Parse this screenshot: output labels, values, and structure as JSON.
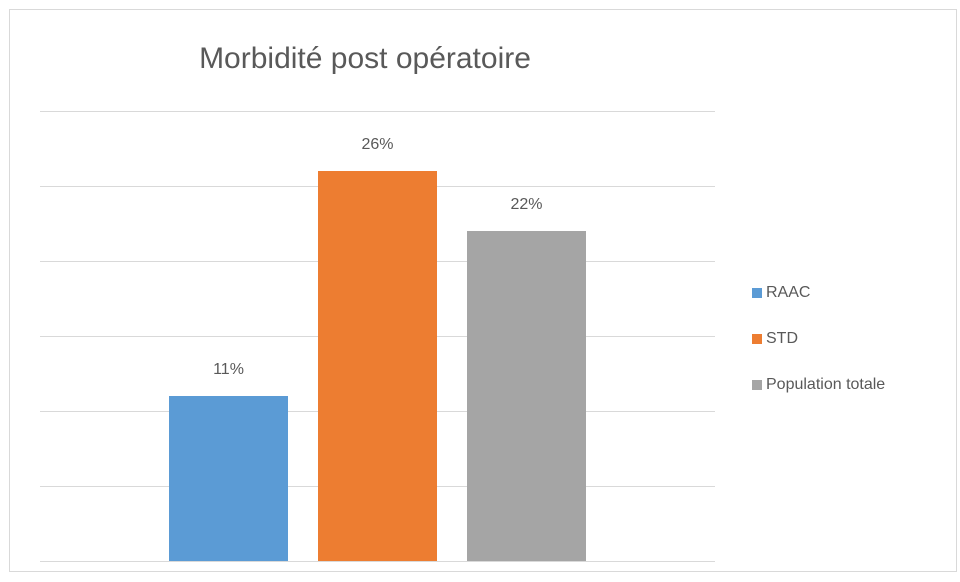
{
  "chart_data": {
    "type": "bar",
    "title": "Morbidité post opératoire",
    "categories": [
      null
    ],
    "series": [
      {
        "name": "RAAC",
        "color": "#5b9bd5",
        "values": [
          11
        ],
        "value_labels": [
          "11%"
        ]
      },
      {
        "name": "STD",
        "color": "#ed7d31",
        "values": [
          26
        ],
        "value_labels": [
          "26%"
        ]
      },
      {
        "name": "Population totale",
        "color": "#a5a5a5",
        "values": [
          22
        ],
        "value_labels": [
          "22%"
        ]
      }
    ],
    "ylim": [
      0,
      30
    ],
    "yticks": [
      0,
      5,
      10,
      15,
      20,
      25,
      30
    ],
    "grid": true,
    "show_tick_labels": false,
    "legend": "right"
  }
}
